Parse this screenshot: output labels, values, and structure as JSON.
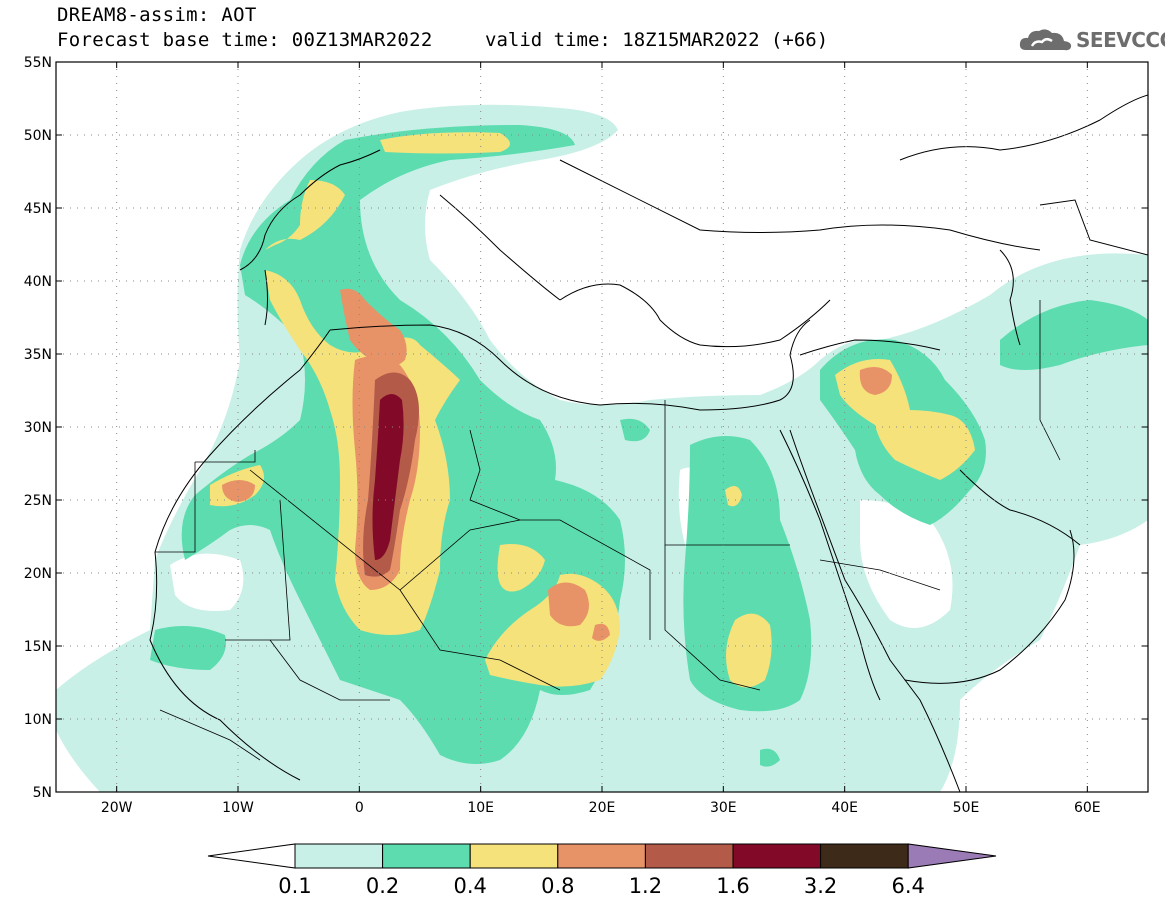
{
  "header": {
    "title": "DREAM8-assim: AOT",
    "base_time": "Forecast base time: 00Z13MAR2022",
    "valid_time": "valid time: 18Z15MAR2022 (+66)"
  },
  "logo": {
    "text": "SEEVCCC",
    "icon": "cloud-icon"
  },
  "map": {
    "lat_ticks": [
      {
        "label": "55N",
        "lat": 55
      },
      {
        "label": "50N",
        "lat": 50
      },
      {
        "label": "45N",
        "lat": 45
      },
      {
        "label": "40N",
        "lat": 40
      },
      {
        "label": "35N",
        "lat": 35
      },
      {
        "label": "30N",
        "lat": 30
      },
      {
        "label": "25N",
        "lat": 25
      },
      {
        "label": "20N",
        "lat": 20
      },
      {
        "label": "15N",
        "lat": 15
      },
      {
        "label": "10N",
        "lat": 10
      },
      {
        "label": "5N",
        "lat": 5
      }
    ],
    "lon_ticks": [
      {
        "label": "20W",
        "lon": -20
      },
      {
        "label": "10W",
        "lon": -10
      },
      {
        "label": "0",
        "lon": 0
      },
      {
        "label": "10E",
        "lon": 10
      },
      {
        "label": "20E",
        "lon": 20
      },
      {
        "label": "30E",
        "lon": 30
      },
      {
        "label": "40E",
        "lon": 40
      },
      {
        "label": "50E",
        "lon": 50
      },
      {
        "label": "60E",
        "lon": 60
      }
    ],
    "extent": {
      "lon_min": -25,
      "lon_max": 65,
      "lat_min": 5,
      "lat_max": 55
    },
    "gridlines": "dotted"
  },
  "colorbar": {
    "labels": [
      "0.1",
      "0.2",
      "0.4",
      "0.8",
      "1.2",
      "1.6",
      "3.2",
      "6.4"
    ],
    "colors": [
      "#ffffff",
      "#c8f0e6",
      "#5ddcb0",
      "#f5e27a",
      "#e89268",
      "#b35a48",
      "#820a28",
      "#3d2a18",
      "#9b7bb5"
    ]
  }
}
